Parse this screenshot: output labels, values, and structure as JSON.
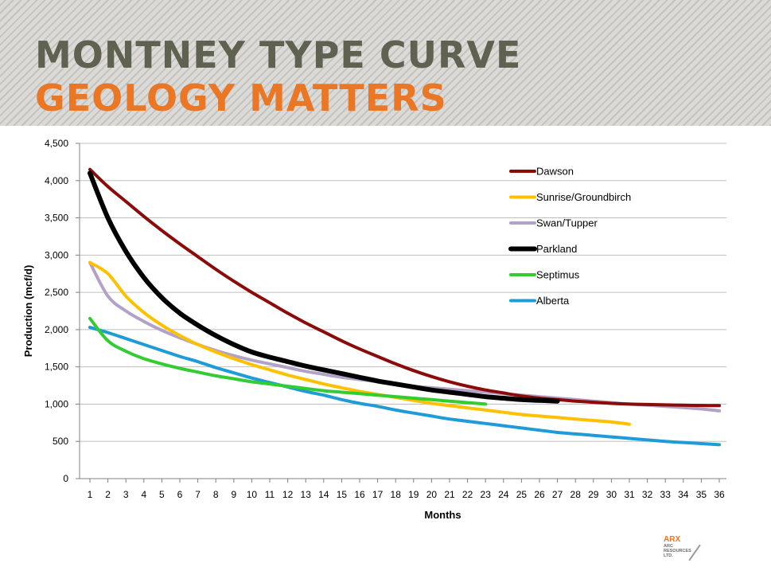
{
  "header": {
    "title_line1": "MONTNEY TYPE CURVE",
    "title_line2": "GEOLOGY MATTERS",
    "title_line1_color": "#5f6151",
    "title_line2_color": "#e97726"
  },
  "logo": {
    "line1": "ARX",
    "line2": "ARC",
    "line3": "RESOURCES",
    "line4": "LTD."
  },
  "chart_data": {
    "type": "line",
    "xlabel": "Months",
    "ylabel": "Production (mcf/d)",
    "xlim": [
      1,
      36
    ],
    "ylim": [
      0,
      4500
    ],
    "x_ticks": [
      1,
      2,
      3,
      4,
      5,
      6,
      7,
      8,
      9,
      10,
      11,
      12,
      13,
      14,
      15,
      16,
      17,
      18,
      19,
      20,
      21,
      22,
      23,
      24,
      25,
      26,
      27,
      28,
      29,
      30,
      31,
      32,
      33,
      34,
      35,
      36
    ],
    "y_ticks": [
      0,
      500,
      1000,
      1500,
      2000,
      2500,
      3000,
      3500,
      4000,
      4500
    ],
    "y_tick_labels": [
      "0",
      "500",
      "1,000",
      "1,500",
      "2,000",
      "2,500",
      "3,000",
      "3,500",
      "4,000",
      "4,500"
    ],
    "grid": "horizontal",
    "legend_position": "top-right",
    "series": [
      {
        "name": "Dawson",
        "color": "#8b0b0b",
        "x": [
          1,
          2,
          3,
          4,
          5,
          6,
          7,
          8,
          9,
          10,
          11,
          12,
          13,
          14,
          15,
          16,
          17,
          18,
          19,
          20,
          21,
          22,
          23,
          24,
          25,
          26,
          27,
          28,
          29,
          30,
          31,
          32,
          33,
          34,
          35,
          36
        ],
        "values": [
          4150,
          3920,
          3720,
          3520,
          3330,
          3150,
          2980,
          2810,
          2650,
          2500,
          2360,
          2220,
          2090,
          1970,
          1850,
          1740,
          1640,
          1540,
          1450,
          1370,
          1300,
          1240,
          1190,
          1150,
          1110,
          1080,
          1060,
          1040,
          1025,
          1010,
          1000,
          995,
          990,
          985,
          982,
          980
        ]
      },
      {
        "name": "Sunrise/Groundbirch",
        "color": "#ffc000",
        "x": [
          1,
          2,
          3,
          4,
          5,
          6,
          7,
          8,
          9,
          10,
          11,
          12,
          13,
          14,
          15,
          16,
          17,
          18,
          19,
          20,
          21,
          22,
          23,
          24,
          25,
          26,
          27,
          28,
          29,
          30,
          31
        ],
        "values": [
          2900,
          2750,
          2450,
          2230,
          2060,
          1920,
          1800,
          1700,
          1610,
          1530,
          1460,
          1390,
          1330,
          1270,
          1220,
          1170,
          1130,
          1090,
          1050,
          1010,
          980,
          950,
          920,
          890,
          860,
          840,
          820,
          800,
          780,
          760,
          730
        ]
      },
      {
        "name": "Swan/Tupper",
        "color": "#b3a2c7",
        "x": [
          1,
          2,
          3,
          4,
          5,
          6,
          7,
          8,
          9,
          10,
          11,
          12,
          13,
          14,
          15,
          16,
          17,
          18,
          19,
          20,
          21,
          22,
          23,
          24,
          25,
          26,
          27,
          28,
          29,
          30,
          31,
          32,
          33,
          34,
          35,
          36
        ],
        "values": [
          2900,
          2450,
          2250,
          2110,
          1990,
          1890,
          1800,
          1720,
          1650,
          1590,
          1540,
          1490,
          1440,
          1400,
          1360,
          1330,
          1300,
          1270,
          1240,
          1220,
          1200,
          1180,
          1160,
          1140,
          1120,
          1100,
          1080,
          1060,
          1040,
          1020,
          1000,
          985,
          970,
          955,
          935,
          910
        ]
      },
      {
        "name": "Parkland",
        "color": "#000000",
        "x": [
          1,
          2,
          3,
          4,
          5,
          6,
          7,
          8,
          9,
          10,
          11,
          12,
          13,
          14,
          15,
          16,
          17,
          18,
          19,
          20,
          21,
          22,
          23,
          24,
          25,
          26,
          27
        ],
        "values": [
          4100,
          3500,
          3050,
          2700,
          2430,
          2220,
          2060,
          1920,
          1800,
          1700,
          1630,
          1570,
          1510,
          1460,
          1410,
          1360,
          1310,
          1270,
          1230,
          1190,
          1160,
          1130,
          1100,
          1080,
          1060,
          1050,
          1040
        ]
      },
      {
        "name": "Septimus",
        "color": "#33cc33",
        "x": [
          1,
          2,
          3,
          4,
          5,
          6,
          7,
          8,
          9,
          10,
          11,
          12,
          13,
          14,
          15,
          16,
          17,
          18,
          19,
          20,
          21,
          22,
          23
        ],
        "values": [
          2150,
          1850,
          1710,
          1610,
          1540,
          1480,
          1430,
          1380,
          1340,
          1300,
          1270,
          1240,
          1210,
          1180,
          1160,
          1140,
          1120,
          1100,
          1080,
          1060,
          1040,
          1020,
          1000
        ]
      },
      {
        "name": "Alberta",
        "color": "#1f9bd7",
        "x": [
          1,
          2,
          3,
          4,
          5,
          6,
          7,
          8,
          9,
          10,
          11,
          12,
          13,
          14,
          15,
          16,
          17,
          18,
          19,
          20,
          21,
          22,
          23,
          24,
          25,
          26,
          27,
          28,
          29,
          30,
          31,
          32,
          33,
          34,
          35,
          36
        ],
        "values": [
          2030,
          1960,
          1880,
          1800,
          1720,
          1640,
          1570,
          1490,
          1420,
          1350,
          1290,
          1230,
          1170,
          1120,
          1060,
          1010,
          970,
          920,
          880,
          840,
          800,
          770,
          740,
          710,
          680,
          650,
          620,
          600,
          580,
          560,
          540,
          520,
          500,
          485,
          470,
          455
        ]
      }
    ]
  }
}
